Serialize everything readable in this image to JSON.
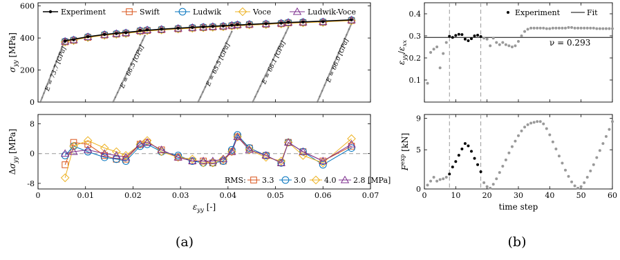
{
  "captions": {
    "a": "(a)",
    "b": "(b)"
  },
  "colors": {
    "experiment": "#000000",
    "swift": "#d95319",
    "ludwik": "#0072bd",
    "voce": "#edb120",
    "ludwik_voce": "#7e2f8e",
    "elastic": "#999999",
    "scatter_grey": "#999999",
    "dashed": "#999999",
    "fit": "#000000"
  },
  "chart_data": [
    {
      "id": "stress_strain",
      "type": "line",
      "xlabel": "",
      "ylabel": "σ_yy [MPa]",
      "xlim": [
        0,
        0.07
      ],
      "ylim": [
        0,
        620
      ],
      "xticks": [
        0,
        0.01,
        0.02,
        0.03,
        0.04,
        0.05,
        0.06,
        0.07
      ],
      "xtick_labels": [
        "",
        "",
        "",
        "",
        "",
        "",
        "",
        ""
      ],
      "yticks": [
        0,
        200,
        400,
        600
      ],
      "ytick_labels": [
        "0",
        "200",
        "400",
        "600"
      ],
      "legend": {
        "position": "top",
        "entries": [
          "Experiment",
          "Swift",
          "Ludwik",
          "Voce",
          "Ludwik-Voce"
        ]
      },
      "experiment_curve": {
        "x": [
          0.0057,
          0.008,
          0.011,
          0.014,
          0.017,
          0.02,
          0.023,
          0.026,
          0.03,
          0.034,
          0.038,
          0.042,
          0.046,
          0.05,
          0.054,
          0.058,
          0.062,
          0.066
        ],
        "y": [
          383,
          395,
          410,
          422,
          431,
          439,
          448,
          455,
          462,
          469,
          475,
          481,
          487,
          493,
          498,
          503,
          508,
          513
        ]
      },
      "points_x": [
        0.0057,
        0.0075,
        0.0105,
        0.014,
        0.0165,
        0.0185,
        0.0215,
        0.023,
        0.026,
        0.0295,
        0.0325,
        0.0348,
        0.0368,
        0.039,
        0.0408,
        0.042,
        0.0445,
        0.048,
        0.0512,
        0.0527,
        0.0558,
        0.06,
        0.066
      ],
      "points_y": [
        380,
        389,
        408,
        422,
        428,
        433,
        447,
        451,
        455,
        461,
        466,
        469,
        472,
        475,
        480,
        484,
        487,
        489,
        493,
        498,
        500,
        502,
        513
      ],
      "elastic_lines": [
        {
          "label": "E = 73.7 [GPa]",
          "x0": 0.0005,
          "x1": 0.0057
        },
        {
          "label": "E = 66.5 [GPa]",
          "x0": 0.0158,
          "x1": 0.0225
        },
        {
          "label": "E = 65.5 [GPa]",
          "x0": 0.0337,
          "x1": 0.0408
        },
        {
          "label": "E = 66.1 [GPa]",
          "x0": 0.0452,
          "x1": 0.0527
        },
        {
          "label": "E = 66.0 [GPa]",
          "x0": 0.0588,
          "x1": 0.066
        }
      ]
    },
    {
      "id": "residuals",
      "type": "line",
      "xlabel": "ε_yy [-]",
      "ylabel": "Δσ_yy [MPa]",
      "xlim": [
        0,
        0.07
      ],
      "ylim": [
        -9.5,
        10.5
      ],
      "xticks": [
        0,
        0.01,
        0.02,
        0.03,
        0.04,
        0.05,
        0.06,
        0.07
      ],
      "xtick_labels": [
        "0",
        "0.01",
        "0.02",
        "0.03",
        "0.04",
        "0.05",
        "0.06",
        "0.07"
      ],
      "yticks": [
        -8,
        0,
        8
      ],
      "ytick_labels": [
        "-8",
        "0",
        "8"
      ],
      "x": [
        0.0057,
        0.0075,
        0.0105,
        0.014,
        0.0165,
        0.0185,
        0.0215,
        0.023,
        0.026,
        0.0295,
        0.0325,
        0.0348,
        0.0368,
        0.039,
        0.0408,
        0.042,
        0.0445,
        0.048,
        0.0512,
        0.0527,
        0.0558,
        0.06,
        0.066
      ],
      "series": [
        {
          "name": "Swift",
          "marker": "square",
          "values": [
            -3,
            3,
            2.5,
            -0.5,
            -1.5,
            -1.5,
            2.5,
            3,
            1,
            -1,
            -2,
            -2,
            -2.5,
            -2,
            0.5,
            4.5,
            1.5,
            -0.5,
            -2.5,
            3,
            0.5,
            -2,
            2
          ]
        },
        {
          "name": "Ludwik",
          "marker": "circle",
          "values": [
            -0.5,
            2,
            0.5,
            -1,
            -1.5,
            -2,
            2,
            2.5,
            0.5,
            -0.5,
            -2,
            -2.5,
            -2.5,
            -2,
            1,
            5,
            1.5,
            -0.5,
            -2.5,
            3,
            0.5,
            -3,
            1.5
          ]
        },
        {
          "name": "Voce",
          "marker": "diamond",
          "values": [
            -6.5,
            2,
            3.5,
            1.5,
            0.5,
            -0.5,
            2.5,
            3.5,
            0.5,
            -1,
            -1.5,
            -2.5,
            -2.5,
            -1.5,
            0.5,
            4.5,
            1,
            -1,
            -2,
            3,
            -0.5,
            -2.5,
            4
          ]
        },
        {
          "name": "Ludwik-Voce",
          "marker": "triangle",
          "values": [
            0,
            0.5,
            1,
            0,
            -0.5,
            -1,
            2.5,
            3,
            1,
            -1,
            -2,
            -2,
            -2,
            -1.5,
            0.5,
            4.5,
            1,
            -0.5,
            -2.5,
            3,
            0.5,
            -2,
            2.5
          ]
        }
      ],
      "legend": {
        "position": "bottom-right",
        "prefix": "RMS:",
        "entries": [
          "3.3",
          "3.0",
          "4.0",
          "2.8 [MPa]"
        ]
      }
    },
    {
      "id": "poisson",
      "type": "scatter",
      "xlabel": "",
      "ylabel": "ε_yy/ε_xx",
      "xlim": [
        0,
        60
      ],
      "ylim": [
        0,
        0.45
      ],
      "xticks": [
        0,
        10,
        20,
        30,
        40,
        50,
        60
      ],
      "xtick_labels": [
        "",
        "",
        "",
        "",
        "",
        "",
        ""
      ],
      "yticks": [
        0.1,
        0.2,
        0.3,
        0.4
      ],
      "ytick_labels": [
        "0.1",
        "0.2",
        "0.3",
        "0.4"
      ],
      "legend": {
        "position": "top-right",
        "entries": [
          "Experiment",
          "Fit"
        ]
      },
      "fit_value": 0.293,
      "annotation": "ν = 0.293",
      "fit_window": [
        8,
        18
      ],
      "experiment_points": {
        "x": [
          8,
          9,
          10,
          11,
          12,
          13,
          14,
          15,
          16,
          17,
          18
        ],
        "y": [
          0.298,
          0.293,
          0.302,
          0.307,
          0.306,
          0.285,
          0.278,
          0.287,
          0.3,
          0.303,
          0.297
        ]
      },
      "other_points": {
        "x": [
          1,
          2,
          3,
          4,
          5,
          6,
          7,
          19,
          20,
          21,
          22,
          23,
          24,
          25,
          26,
          27,
          28,
          29,
          30,
          31,
          32,
          33,
          34,
          35,
          36,
          37,
          38,
          39,
          40,
          41,
          42,
          43,
          44,
          45,
          46,
          47,
          48,
          49,
          50,
          51,
          52,
          53,
          54,
          55,
          56,
          57,
          58,
          59,
          60
        ],
        "y": [
          0.085,
          0.225,
          0.24,
          0.25,
          0.155,
          0.22,
          0.27,
          0.29,
          0.285,
          0.255,
          0.29,
          0.27,
          0.26,
          0.27,
          0.26,
          0.255,
          0.25,
          0.255,
          0.275,
          0.3,
          0.32,
          0.33,
          0.335,
          0.335,
          0.335,
          0.335,
          0.335,
          0.333,
          0.333,
          0.335,
          0.335,
          0.335,
          0.335,
          0.335,
          0.338,
          0.338,
          0.335,
          0.335,
          0.335,
          0.335,
          0.335,
          0.335,
          0.335,
          0.333,
          0.333,
          0.333,
          0.333,
          0.333,
          0.333
        ]
      }
    },
    {
      "id": "force",
      "type": "scatter",
      "xlabel": "time step",
      "ylabel": "F^exp [kN]",
      "xlim": [
        0,
        60
      ],
      "ylim": [
        0,
        9.5
      ],
      "xticks": [
        0,
        10,
        20,
        30,
        40,
        50,
        60
      ],
      "xtick_labels": [
        "0",
        "10",
        "20",
        "30",
        "40",
        "50",
        "60"
      ],
      "yticks": [
        0,
        5,
        9
      ],
      "ytick_labels": [
        "0",
        "5",
        "9"
      ],
      "fit_window": [
        8,
        18
      ],
      "highlight_points": {
        "x": [
          8,
          9,
          10,
          11,
          12,
          13,
          14,
          15,
          16,
          17,
          18
        ],
        "y": [
          1.9,
          2.8,
          3.5,
          4.3,
          5.1,
          5.8,
          5.5,
          4.8,
          3.9,
          3.1,
          2.2
        ]
      },
      "other_points": {
        "x": [
          1,
          2,
          3,
          4,
          5,
          6,
          7,
          19,
          20,
          21,
          22,
          23,
          24,
          25,
          26,
          27,
          28,
          29,
          30,
          31,
          32,
          33,
          34,
          35,
          36,
          37,
          38,
          39,
          40,
          41,
          42,
          43,
          44,
          45,
          46,
          47,
          48,
          49,
          50,
          51,
          52,
          53,
          54,
          55,
          56,
          57,
          58,
          59,
          60
        ],
        "y": [
          0.5,
          1.0,
          1.5,
          1.0,
          1.2,
          1.3,
          1.5,
          0.8,
          0.3,
          0.1,
          0.6,
          1.3,
          2.1,
          2.9,
          3.7,
          4.6,
          5.4,
          6.1,
          6.8,
          7.4,
          7.9,
          8.2,
          8.4,
          8.5,
          8.6,
          8.6,
          8.3,
          7.7,
          6.9,
          6.0,
          5.1,
          4.2,
          3.3,
          2.4,
          1.6,
          0.9,
          0.4,
          0.1,
          0.3,
          0.8,
          1.5,
          2.3,
          3.1,
          4.0,
          4.9,
          5.8,
          6.7,
          7.6,
          8.6
        ]
      }
    }
  ]
}
